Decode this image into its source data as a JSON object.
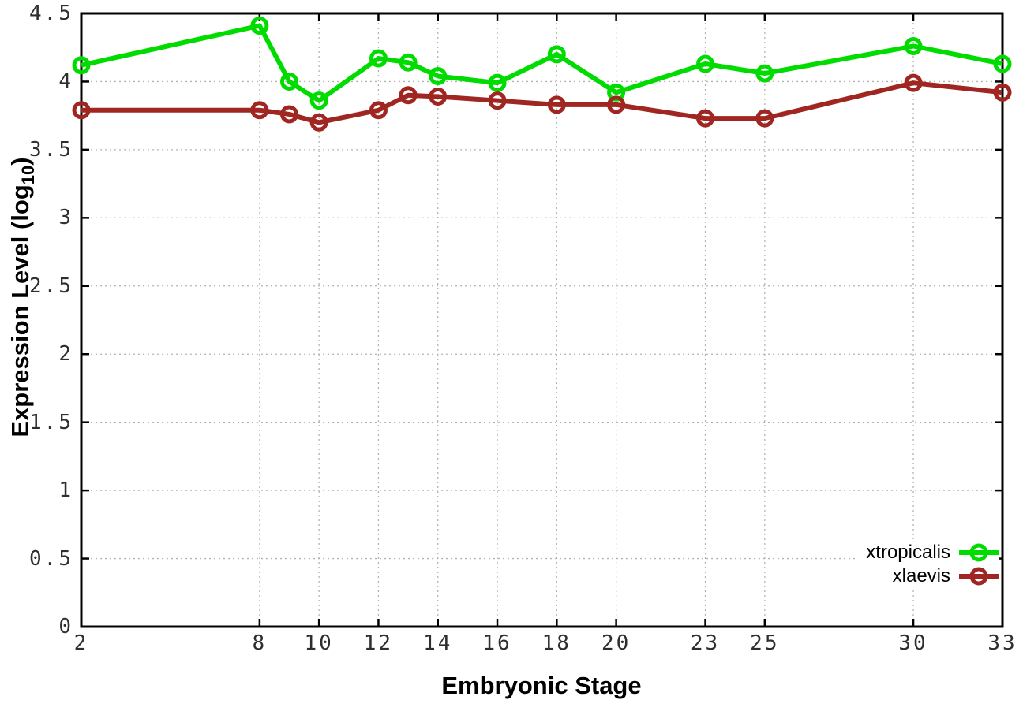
{
  "figure": {
    "x_axis_title": "Embryonic Stage",
    "y_axis_title_prefix": "Expression Level (log",
    "y_axis_title_sub": "10",
    "y_axis_title_suffix": ")"
  },
  "chart_data": {
    "type": "line",
    "title": "",
    "xlabel": "Embryonic Stage",
    "ylabel": "Expression Level (log10)",
    "xlim": [
      2,
      33
    ],
    "ylim": [
      0,
      4.5
    ],
    "grid": true,
    "grid_color": "#b3b3b3",
    "border_color": "#000000",
    "legend_position": "bottom-right",
    "x": [
      2,
      8,
      9,
      10,
      12,
      13,
      14,
      16,
      18,
      20,
      23,
      25,
      30,
      33
    ],
    "xtick_labels": [
      "2",
      "8",
      "10",
      "12",
      "14",
      "16",
      "18",
      "20",
      "23",
      "25",
      "30",
      "33"
    ],
    "ytick_labels": [
      "0",
      "0.5",
      "1",
      "1.5",
      "2",
      "2.5",
      "3",
      "3.5",
      "4",
      "4.5"
    ],
    "series": [
      {
        "name": "xtropicalis",
        "color": "#00dc00",
        "values": [
          4.12,
          4.41,
          4.0,
          3.86,
          4.17,
          4.14,
          4.04,
          3.99,
          4.2,
          3.92,
          4.13,
          4.06,
          4.26,
          4.13
        ]
      },
      {
        "name": "xlaevis",
        "color": "#a02622",
        "values": [
          3.79,
          3.79,
          3.76,
          3.7,
          3.79,
          3.9,
          3.89,
          3.86,
          3.83,
          3.83,
          3.73,
          3.73,
          3.99,
          3.92
        ]
      }
    ]
  }
}
